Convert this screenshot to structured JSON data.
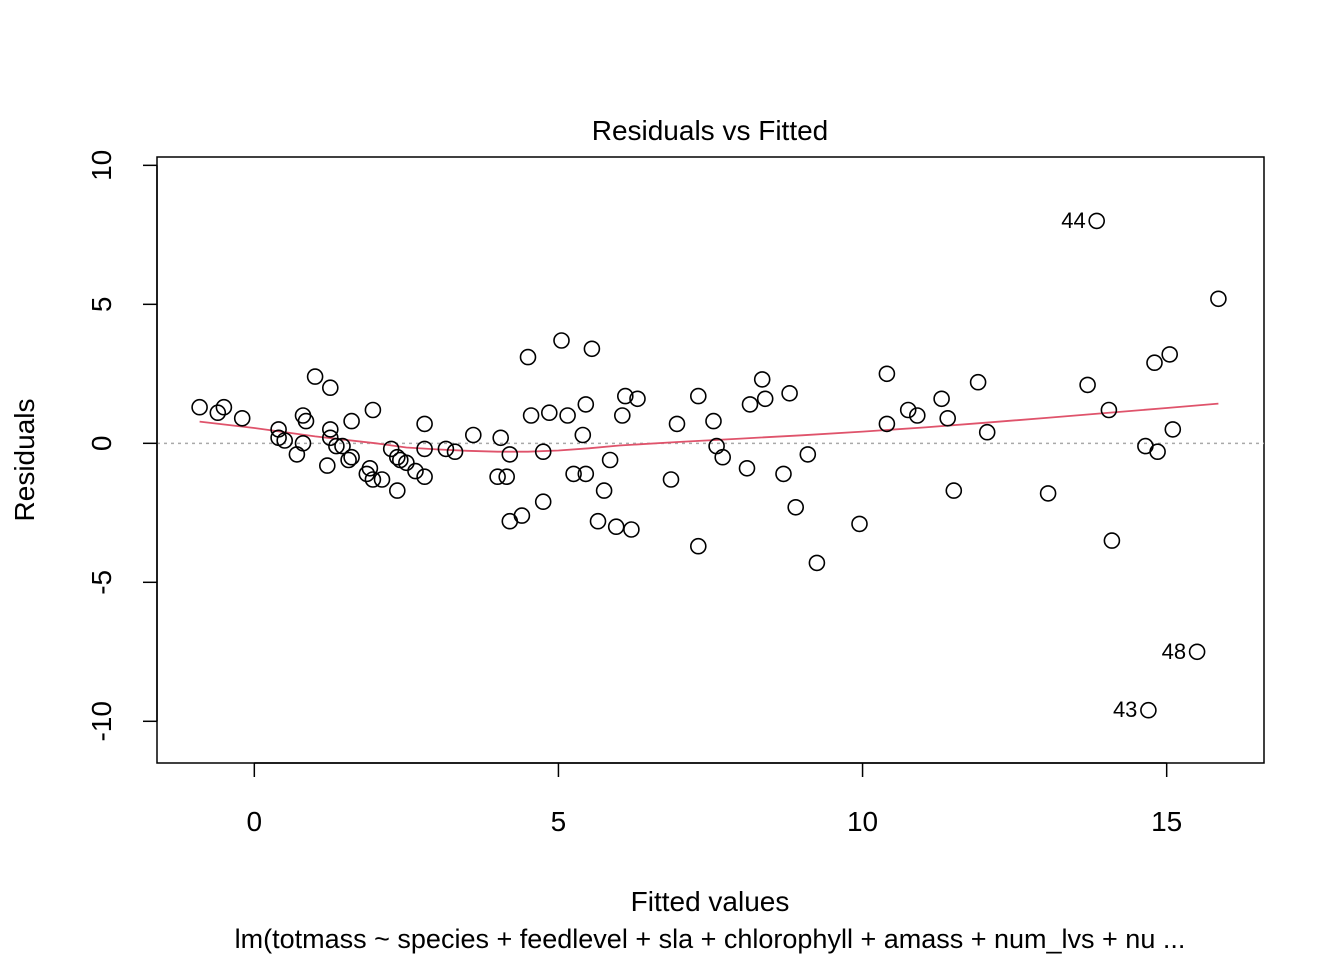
{
  "chart_data": {
    "type": "scatter",
    "title": "Residuals vs Fitted",
    "xlabel": "Fitted values",
    "ylabel": "Residuals",
    "subtitle": "lm(totmass ~ species + feedlevel + sla + chlorophyll + amass + num_lvs + nu ...",
    "xlim": [
      -1.6,
      16.6
    ],
    "ylim": [
      -11.5,
      10.3
    ],
    "x_ticks": [
      0,
      5,
      10,
      15
    ],
    "y_ticks": [
      -10,
      -5,
      0,
      5,
      10
    ],
    "x_tick_labels": [
      "0",
      "5",
      "10",
      "15"
    ],
    "y_tick_labels": [
      "-10",
      "-5",
      "0",
      "5",
      "10"
    ],
    "grid": false,
    "reference_line": 0,
    "colors": {
      "points": "#000000",
      "smooth": "#DF536B",
      "reference": "#A9A9A9"
    },
    "points": [
      [
        -0.9,
        1.3
      ],
      [
        -0.6,
        1.1
      ],
      [
        -0.5,
        1.3
      ],
      [
        -0.2,
        0.9
      ],
      [
        0.4,
        0.5
      ],
      [
        0.4,
        0.2
      ],
      [
        0.5,
        0.1
      ],
      [
        0.7,
        -0.4
      ],
      [
        0.8,
        1.0
      ],
      [
        0.8,
        0.0
      ],
      [
        0.85,
        0.8
      ],
      [
        1.0,
        2.4
      ],
      [
        1.2,
        -0.8
      ],
      [
        1.25,
        0.5
      ],
      [
        1.25,
        0.2
      ],
      [
        1.25,
        2.0
      ],
      [
        1.35,
        -0.1
      ],
      [
        1.45,
        -0.1
      ],
      [
        1.55,
        -0.6
      ],
      [
        1.6,
        -0.5
      ],
      [
        1.6,
        0.8
      ],
      [
        1.85,
        -1.1
      ],
      [
        1.9,
        -0.9
      ],
      [
        1.95,
        1.2
      ],
      [
        1.95,
        -1.3
      ],
      [
        2.1,
        -1.3
      ],
      [
        2.25,
        -0.2
      ],
      [
        2.35,
        -0.5
      ],
      [
        2.35,
        -1.7
      ],
      [
        2.4,
        -0.6
      ],
      [
        2.5,
        -0.7
      ],
      [
        2.65,
        -1.0
      ],
      [
        2.8,
        0.7
      ],
      [
        2.8,
        -1.2
      ],
      [
        2.8,
        -0.2
      ],
      [
        3.15,
        -0.2
      ],
      [
        3.3,
        -0.3
      ],
      [
        3.6,
        0.3
      ],
      [
        4.0,
        -1.2
      ],
      [
        4.05,
        0.2
      ],
      [
        4.15,
        -1.2
      ],
      [
        4.2,
        -0.4
      ],
      [
        4.2,
        -2.8
      ],
      [
        4.4,
        -2.6
      ],
      [
        4.5,
        3.1
      ],
      [
        4.55,
        1.0
      ],
      [
        4.75,
        -0.3
      ],
      [
        4.75,
        -2.1
      ],
      [
        4.85,
        1.1
      ],
      [
        5.05,
        3.7
      ],
      [
        5.15,
        1.0
      ],
      [
        5.25,
        -1.1
      ],
      [
        5.4,
        0.3
      ],
      [
        5.45,
        -1.1
      ],
      [
        5.45,
        1.4
      ],
      [
        5.55,
        3.4
      ],
      [
        5.65,
        -2.8
      ],
      [
        5.75,
        -1.7
      ],
      [
        5.85,
        -0.6
      ],
      [
        5.95,
        -3.0
      ],
      [
        6.05,
        1.0
      ],
      [
        6.1,
        1.7
      ],
      [
        6.2,
        -3.1
      ],
      [
        6.3,
        1.6
      ],
      [
        6.85,
        -1.3
      ],
      [
        6.95,
        0.7
      ],
      [
        7.3,
        1.7
      ],
      [
        7.3,
        -3.7
      ],
      [
        7.55,
        0.8
      ],
      [
        7.6,
        -0.1
      ],
      [
        7.7,
        -0.5
      ],
      [
        8.1,
        -0.9
      ],
      [
        8.15,
        1.4
      ],
      [
        8.35,
        2.3
      ],
      [
        8.4,
        1.6
      ],
      [
        8.7,
        -1.1
      ],
      [
        8.8,
        1.8
      ],
      [
        8.9,
        -2.3
      ],
      [
        9.1,
        -0.4
      ],
      [
        9.25,
        -4.3
      ],
      [
        9.95,
        -2.9
      ],
      [
        10.4,
        2.5
      ],
      [
        10.4,
        0.7
      ],
      [
        10.75,
        1.2
      ],
      [
        10.9,
        1.0
      ],
      [
        11.3,
        1.6
      ],
      [
        11.4,
        0.9
      ],
      [
        11.5,
        -1.7
      ],
      [
        11.9,
        2.2
      ],
      [
        12.05,
        0.4
      ],
      [
        13.05,
        -1.8
      ],
      [
        13.7,
        2.1
      ],
      [
        13.85,
        8.0
      ],
      [
        14.05,
        1.2
      ],
      [
        14.1,
        -3.5
      ],
      [
        14.65,
        -0.1
      ],
      [
        14.7,
        -9.6
      ],
      [
        14.8,
        2.9
      ],
      [
        14.85,
        -0.3
      ],
      [
        15.05,
        3.2
      ],
      [
        15.1,
        0.5
      ],
      [
        15.5,
        -7.5
      ],
      [
        15.85,
        5.2
      ]
    ],
    "smooth_line": [
      [
        -0.9,
        0.78
      ],
      [
        0.0,
        0.55
      ],
      [
        1.0,
        0.25
      ],
      [
        2.0,
        0.0
      ],
      [
        2.5,
        -0.15
      ],
      [
        3.0,
        -0.22
      ],
      [
        3.5,
        -0.27
      ],
      [
        4.0,
        -0.3
      ],
      [
        4.5,
        -0.3
      ],
      [
        5.0,
        -0.26
      ],
      [
        5.5,
        -0.18
      ],
      [
        6.0,
        -0.08
      ],
      [
        7.0,
        0.05
      ],
      [
        8.0,
        0.17
      ],
      [
        9.0,
        0.29
      ],
      [
        10.0,
        0.42
      ],
      [
        11.0,
        0.57
      ],
      [
        12.0,
        0.74
      ],
      [
        13.0,
        0.91
      ],
      [
        14.0,
        1.09
      ],
      [
        15.0,
        1.27
      ],
      [
        15.85,
        1.43
      ]
    ],
    "annotations": [
      {
        "label": "44",
        "x": 13.85,
        "y": 8.0
      },
      {
        "label": "48",
        "x": 15.5,
        "y": -7.5
      },
      {
        "label": "43",
        "x": 14.7,
        "y": -9.6
      }
    ]
  }
}
